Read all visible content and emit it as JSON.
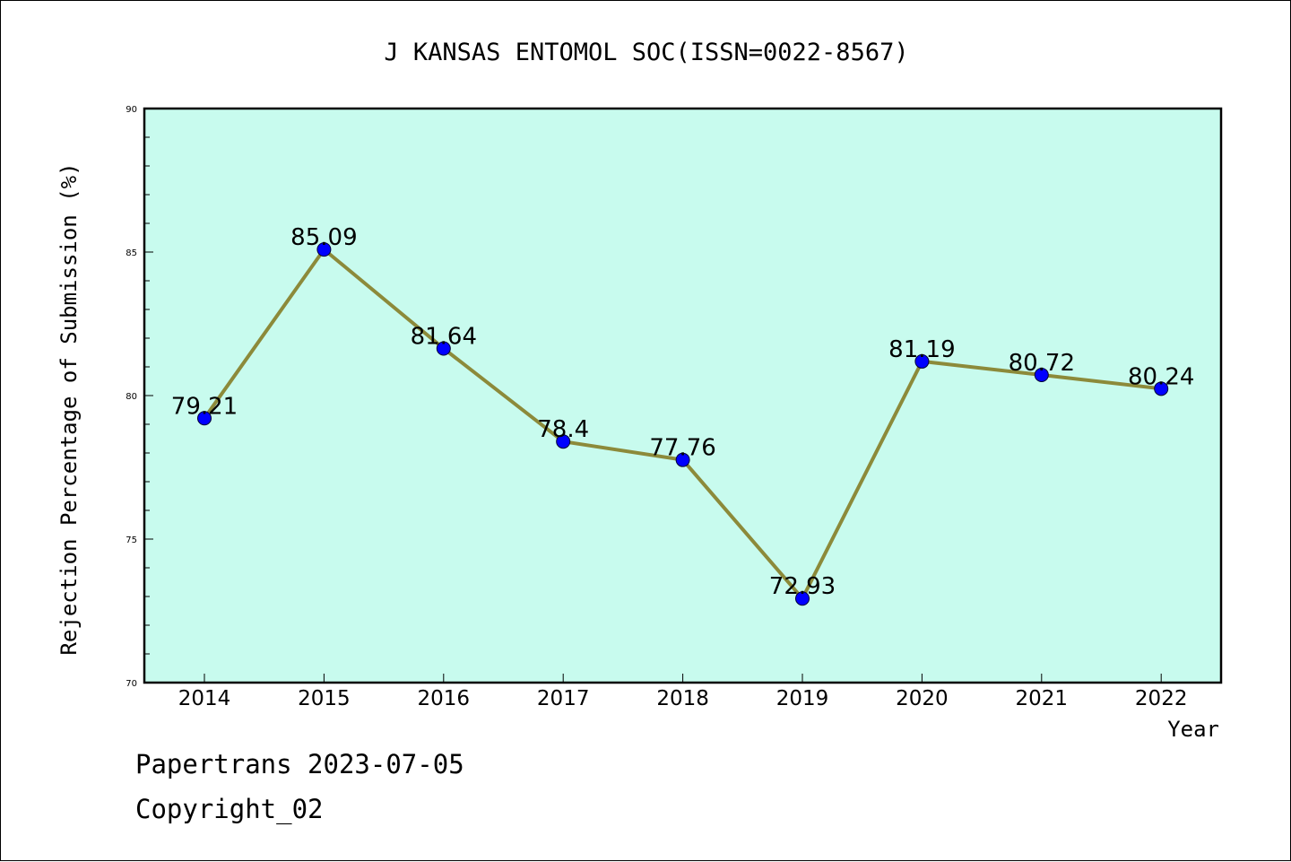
{
  "chart_data": {
    "type": "line",
    "title": "J KANSAS ENTOMOL SOC(ISSN=0022-8567)",
    "xlabel": "Year",
    "ylabel": "Rejection Percentage of Submission (%)",
    "categories": [
      "2014",
      "2015",
      "2016",
      "2017",
      "2018",
      "2019",
      "2020",
      "2021",
      "2022"
    ],
    "series": [
      {
        "values": [
          79.21,
          85.09,
          81.64,
          78.4,
          77.76,
          72.93,
          81.19,
          80.72,
          80.24
        ],
        "data_labels": [
          "79.21",
          "85.09",
          "81.64",
          "78.4",
          "77.76",
          "72.93",
          "81.19",
          "80.72",
          "80.24"
        ]
      }
    ],
    "ylim": [
      70,
      90
    ],
    "yticks": [
      "70",
      "75",
      "80",
      "85",
      "90"
    ],
    "grid": false,
    "colors": {
      "plot_background": "#c8fbee",
      "line": "#8c8a3a",
      "marker": "#0000ff",
      "frame": "#000000"
    }
  },
  "footer": {
    "line1": "Papertrans 2023-07-05",
    "line2": "Copyright_02"
  }
}
